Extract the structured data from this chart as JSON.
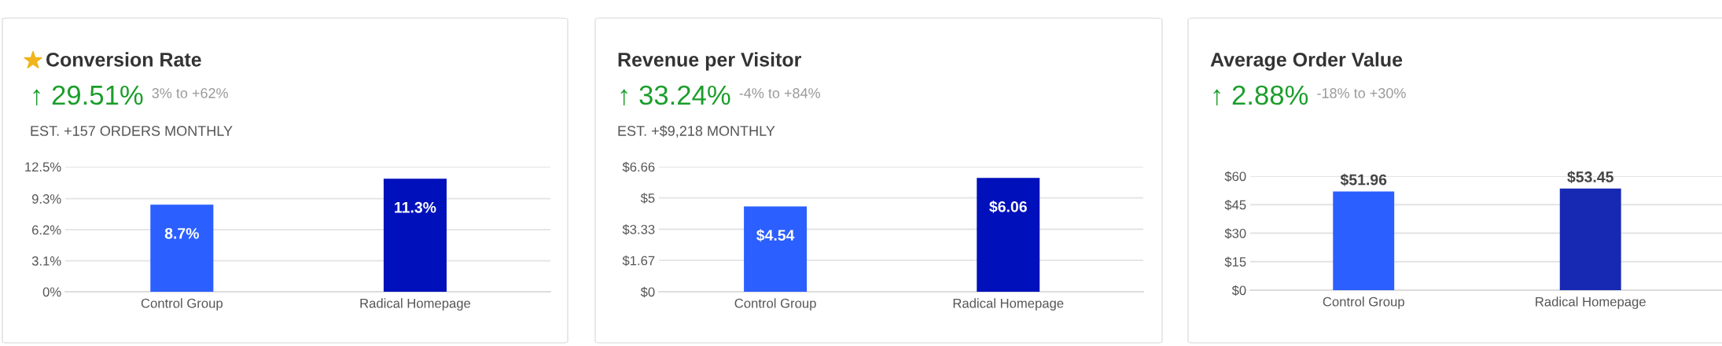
{
  "chart_data": [
    {
      "type": "bar",
      "title": "Conversion Rate",
      "subtitle": "↑ 29.51%",
      "annotations": [
        "3% to +62%",
        "EST. +157 ORDERS MONTHLY"
      ],
      "categories": [
        "Control Group",
        "Radical Homepage"
      ],
      "values": [
        8.7,
        11.3
      ],
      "value_labels": [
        "8.7%",
        "11.3%"
      ],
      "colors": [
        "#2b5fff",
        "#0011bb"
      ],
      "ylim": [
        0,
        12.5
      ],
      "yticks": [
        {
          "value": 0,
          "label": "0%"
        },
        {
          "value": 3.1,
          "label": "3.1%"
        },
        {
          "value": 6.2,
          "label": "6.2%"
        },
        {
          "value": 9.3,
          "label": "9.3%"
        },
        {
          "value": 12.5,
          "label": "12.5%"
        }
      ],
      "grid": "y",
      "legend": false
    },
    {
      "type": "bar",
      "title": "Revenue per Visitor",
      "subtitle": "↑ 33.24%",
      "annotations": [
        "-4% to +84%",
        "EST. +$9,218 MONTHLY"
      ],
      "categories": [
        "Control Group",
        "Radical Homepage"
      ],
      "values": [
        4.54,
        6.06
      ],
      "value_labels": [
        "$4.54",
        "$6.06"
      ],
      "colors": [
        "#2b5fff",
        "#0011bb"
      ],
      "ylim": [
        0,
        6.66
      ],
      "yticks": [
        {
          "value": 0,
          "label": "$0"
        },
        {
          "value": 1.67,
          "label": "$1.67"
        },
        {
          "value": 3.33,
          "label": "$3.33"
        },
        {
          "value": 5,
          "label": "$5"
        },
        {
          "value": 6.66,
          "label": "$6.66"
        }
      ],
      "grid": "y",
      "legend": false
    },
    {
      "type": "bar",
      "title": "Average Order Value",
      "subtitle": "↑ 2.88%",
      "annotations": [
        "-18% to +30%"
      ],
      "categories": [
        "Control Group",
        "Radical Homepage"
      ],
      "values": [
        51.96,
        53.45
      ],
      "value_labels": [
        "$51.96",
        "$53.45"
      ],
      "colors": [
        "#2b5fff",
        "#1729b3"
      ],
      "ylim": [
        0,
        60
      ],
      "yticks": [
        {
          "value": 0,
          "label": "$0"
        },
        {
          "value": 15,
          "label": "$15"
        },
        {
          "value": 30,
          "label": "$30"
        },
        {
          "value": 45,
          "label": "$45"
        },
        {
          "value": 60,
          "label": "$60"
        }
      ],
      "grid": "y",
      "legend": false
    }
  ]
}
